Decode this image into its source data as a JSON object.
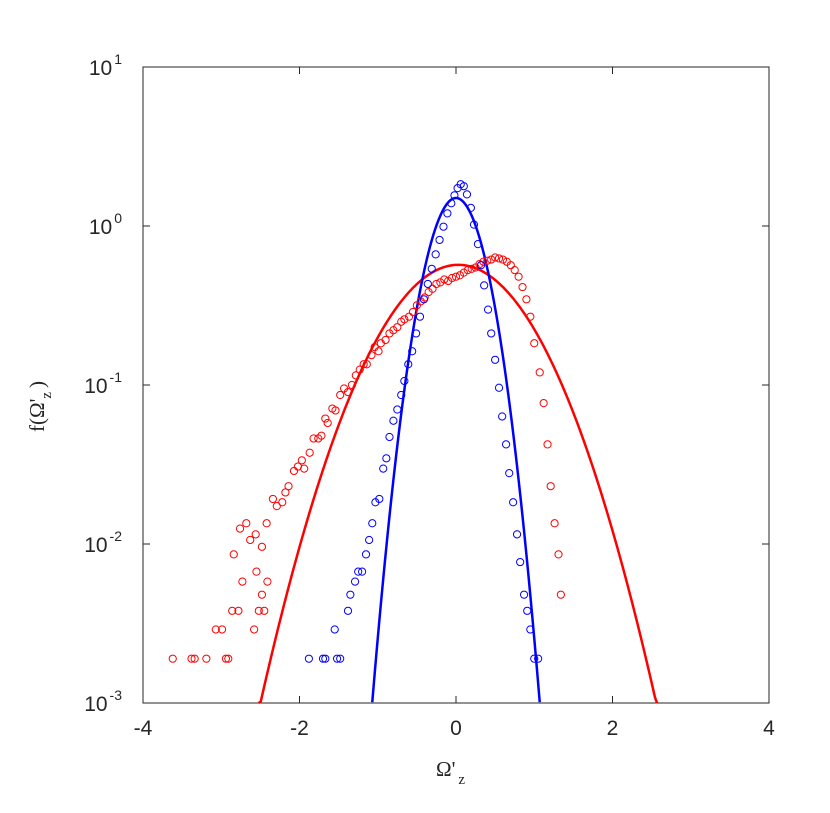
{
  "chart_data": {
    "type": "scatter",
    "title": "",
    "xlabel": {
      "main": "Ω'",
      "sub": "z"
    },
    "ylabel": {
      "prefix": "f(Ω'",
      "sub": "z",
      "suffix": ")"
    },
    "xlim": [
      -4,
      4
    ],
    "ylim": [
      0.001,
      10
    ],
    "yscale": "log",
    "grid": false,
    "legend": "none",
    "xticks": [
      {
        "value": -4,
        "label": "-4"
      },
      {
        "value": -2,
        "label": "-2"
      },
      {
        "value": 0,
        "label": "0"
      },
      {
        "value": 2,
        "label": "2"
      },
      {
        "value": 4,
        "label": "4"
      }
    ],
    "yticks": [
      {
        "value": 0.001,
        "base": "10",
        "exp": "-3"
      },
      {
        "value": 0.01,
        "base": "10",
        "exp": "-2"
      },
      {
        "value": 0.1,
        "base": "10",
        "exp": "-1"
      },
      {
        "value": 1,
        "base": "10",
        "exp": "0"
      },
      {
        "value": 10,
        "base": "10",
        "exp": "1"
      }
    ],
    "series": [
      {
        "kind": "markers",
        "color": "#ff0000",
        "points": [
          [
            -3.62,
            0.0019
          ],
          [
            -3.38,
            0.0019
          ],
          [
            -3.34,
            0.0019
          ],
          [
            -3.19,
            0.0019
          ],
          [
            -2.94,
            0.0019
          ],
          [
            -2.91,
            0.0019
          ],
          [
            -3.07,
            0.0029
          ],
          [
            -2.99,
            0.0029
          ],
          [
            -2.86,
            0.0038
          ],
          [
            -2.78,
            0.0038
          ],
          [
            -2.58,
            0.0029
          ],
          [
            -2.52,
            0.0038
          ],
          [
            -2.45,
            0.0038
          ],
          [
            -2.73,
            0.0058
          ],
          [
            -2.55,
            0.0067
          ],
          [
            -2.48,
            0.0048
          ],
          [
            -2.41,
            0.0058
          ],
          [
            -2.84,
            0.0086
          ],
          [
            -2.76,
            0.0125
          ],
          [
            -2.68,
            0.0135
          ],
          [
            -2.63,
            0.0106
          ],
          [
            -2.56,
            0.0115
          ],
          [
            -2.48,
            0.0096
          ],
          [
            -2.42,
            0.0135
          ],
          [
            -2.34,
            0.0192
          ],
          [
            -2.29,
            0.0173
          ],
          [
            -2.22,
            0.0183
          ],
          [
            -2.18,
            0.0211
          ],
          [
            -2.14,
            0.0231
          ],
          [
            -2.07,
            0.0288
          ],
          [
            -2.02,
            0.0307
          ],
          [
            -1.97,
            0.0336
          ],
          [
            -1.94,
            0.0298
          ],
          [
            -1.87,
            0.0375
          ],
          [
            -1.82,
            0.0461
          ],
          [
            -1.76,
            0.0461
          ],
          [
            -1.72,
            0.048
          ],
          [
            -1.67,
            0.0615
          ],
          [
            -1.64,
            0.0577
          ],
          [
            -1.58,
            0.0711
          ],
          [
            -1.54,
            0.0692
          ],
          [
            -1.48,
            0.0865
          ],
          [
            -1.43,
            0.0951
          ],
          [
            -1.38,
            0.0903
          ],
          [
            -1.33,
            0.1
          ],
          [
            -1.28,
            0.115
          ],
          [
            -1.23,
            0.125
          ],
          [
            -1.18,
            0.135
          ],
          [
            -1.14,
            0.135
          ],
          [
            -1.08,
            0.154
          ],
          [
            -1.04,
            0.173
          ],
          [
            -0.99,
            0.163
          ],
          [
            -0.96,
            0.183
          ],
          [
            -0.9,
            0.192
          ],
          [
            -0.85,
            0.211
          ],
          [
            -0.8,
            0.221
          ],
          [
            -0.75,
            0.231
          ],
          [
            -0.7,
            0.25
          ],
          [
            -0.66,
            0.259
          ],
          [
            -0.6,
            0.269
          ],
          [
            -0.55,
            0.288
          ],
          [
            -0.5,
            0.317
          ],
          [
            -0.45,
            0.336
          ],
          [
            -0.4,
            0.355
          ],
          [
            -0.35,
            0.384
          ],
          [
            -0.3,
            0.403
          ],
          [
            -0.25,
            0.432
          ],
          [
            -0.2,
            0.442
          ],
          [
            -0.15,
            0.461
          ],
          [
            -0.1,
            0.451
          ],
          [
            -0.05,
            0.471
          ],
          [
            0.0,
            0.48
          ],
          [
            0.05,
            0.49
          ],
          [
            0.1,
            0.509
          ],
          [
            0.15,
            0.528
          ],
          [
            0.2,
            0.538
          ],
          [
            0.25,
            0.548
          ],
          [
            0.3,
            0.576
          ],
          [
            0.35,
            0.596
          ],
          [
            0.4,
            0.605
          ],
          [
            0.45,
            0.615
          ],
          [
            0.5,
            0.634
          ],
          [
            0.55,
            0.625
          ],
          [
            0.6,
            0.615
          ],
          [
            0.65,
            0.596
          ],
          [
            0.7,
            0.567
          ],
          [
            0.75,
            0.528
          ],
          [
            0.8,
            0.48
          ],
          [
            0.85,
            0.413
          ],
          [
            0.9,
            0.346
          ],
          [
            0.95,
            0.269
          ],
          [
            1.0,
            0.183
          ],
          [
            1.07,
            0.12
          ],
          [
            1.12,
            0.0769
          ],
          [
            1.17,
            0.0423
          ],
          [
            1.21,
            0.0231
          ],
          [
            1.26,
            0.0135
          ],
          [
            1.31,
            0.0086
          ],
          [
            1.34,
            0.0048
          ]
        ]
      },
      {
        "kind": "markers",
        "color": "#0000ff",
        "points": [
          [
            -1.88,
            0.0019
          ],
          [
            -1.7,
            0.0019
          ],
          [
            -1.67,
            0.0019
          ],
          [
            -1.52,
            0.0019
          ],
          [
            -1.48,
            0.0019
          ],
          [
            -1.55,
            0.0029
          ],
          [
            -1.38,
            0.0038
          ],
          [
            -1.35,
            0.0048
          ],
          [
            -1.29,
            0.0058
          ],
          [
            -1.25,
            0.0067
          ],
          [
            -1.2,
            0.0067
          ],
          [
            -1.15,
            0.0086
          ],
          [
            -1.11,
            0.0106
          ],
          [
            -1.07,
            0.0135
          ],
          [
            -1.03,
            0.0183
          ],
          [
            -0.98,
            0.0192
          ],
          [
            -0.93,
            0.0298
          ],
          [
            -0.89,
            0.0346
          ],
          [
            -0.85,
            0.0471
          ],
          [
            -0.8,
            0.0596
          ],
          [
            -0.75,
            0.0701
          ],
          [
            -0.7,
            0.0865
          ],
          [
            -0.66,
            0.106
          ],
          [
            -0.61,
            0.135
          ],
          [
            -0.56,
            0.163
          ],
          [
            -0.51,
            0.211
          ],
          [
            -0.46,
            0.269
          ],
          [
            -0.41,
            0.346
          ],
          [
            -0.36,
            0.432
          ],
          [
            -0.31,
            0.538
          ],
          [
            -0.26,
            0.663
          ],
          [
            -0.21,
            0.817
          ],
          [
            -0.16,
            0.99
          ],
          [
            -0.11,
            1.2
          ],
          [
            -0.06,
            1.39
          ],
          [
            -0.02,
            1.56
          ],
          [
            0.02,
            1.73
          ],
          [
            0.06,
            1.83
          ],
          [
            0.1,
            1.78
          ],
          [
            0.14,
            1.58
          ],
          [
            0.19,
            1.3
          ],
          [
            0.23,
            1.02
          ],
          [
            0.28,
            0.769
          ],
          [
            0.32,
            0.567
          ],
          [
            0.36,
            0.423
          ],
          [
            0.41,
            0.298
          ],
          [
            0.45,
            0.211
          ],
          [
            0.5,
            0.144
          ],
          [
            0.55,
            0.0961
          ],
          [
            0.59,
            0.0634
          ],
          [
            0.64,
            0.0423
          ],
          [
            0.68,
            0.0279
          ],
          [
            0.73,
            0.0183
          ],
          [
            0.78,
            0.0115
          ],
          [
            0.82,
            0.0077
          ],
          [
            0.87,
            0.0048
          ],
          [
            0.91,
            0.0038
          ],
          [
            0.95,
            0.0029
          ],
          [
            1.0,
            0.0019
          ],
          [
            1.05,
            0.0019
          ]
        ]
      },
      {
        "kind": "curve",
        "color": "#ff0000",
        "model": "gaussian",
        "peak": 0.57,
        "mean": 0.03,
        "sd": 0.71,
        "x_range": [
          -2.52,
          2.57
        ]
      },
      {
        "kind": "curve",
        "color": "#0000ff",
        "model": "gaussian",
        "peak": 1.5,
        "mean": 0.0,
        "sd": 0.28,
        "x_range": [
          -1.07,
          1.07
        ]
      }
    ]
  }
}
